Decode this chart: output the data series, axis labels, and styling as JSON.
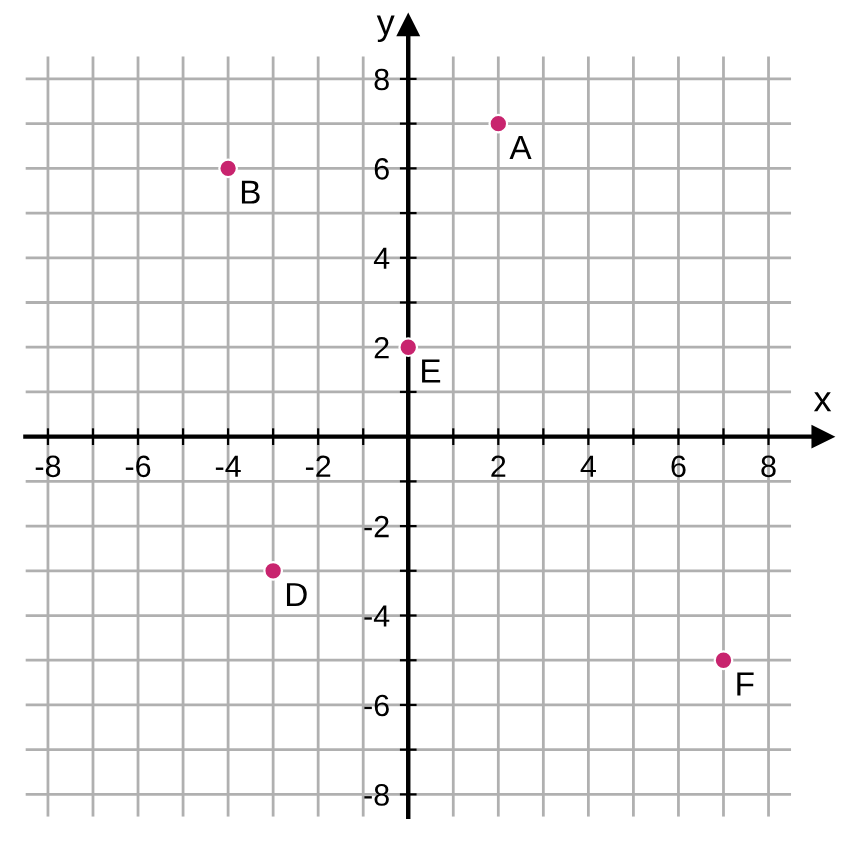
{
  "chart_data": {
    "type": "scatter",
    "xlabel": "x",
    "ylabel": "y",
    "series": [
      {
        "color": "#c8246e",
        "x": [
          2,
          -4,
          0,
          -3,
          7
        ],
        "values": [
          7,
          6,
          2,
          -3,
          -5
        ]
      }
    ],
    "marker": "circle",
    "grid": true,
    "xlim": [
      -8.5,
      9.2
    ],
    "ylim": [
      -8.5,
      9.2
    ],
    "xticks": [
      -8,
      {
        "value": -7,
        "label": null
      },
      -6,
      {
        "value": -5,
        "label": null
      },
      -4,
      {
        "value": -3,
        "label": null
      },
      -2,
      {
        "value": -1,
        "label": null
      },
      {
        "value": 0,
        "label": null
      },
      {
        "value": 1,
        "label": null
      },
      2,
      {
        "value": 3,
        "label": null
      },
      4,
      {
        "value": 5,
        "label": null
      },
      6,
      {
        "value": 7,
        "label": null
      },
      8
    ],
    "yticks": [
      -8,
      {
        "value": -7,
        "label": null
      },
      -6,
      {
        "value": -5,
        "label": null
      },
      -4,
      {
        "value": -3,
        "label": null
      },
      -2,
      {
        "value": -1,
        "label": null
      },
      {
        "value": 0,
        "label": null
      },
      {
        "value": 1,
        "label": null
      },
      2,
      {
        "value": 3,
        "label": null
      },
      4,
      {
        "value": 5,
        "label": null
      },
      6,
      {
        "value": 7,
        "label": null
      },
      8
    ],
    "annotations": [
      {
        "text": "A",
        "x": 2,
        "y": 7
      },
      {
        "text": "B",
        "x": -4,
        "y": 6
      },
      {
        "text": "E",
        "x": 0,
        "y": 2
      },
      {
        "text": "D",
        "x": -3,
        "y": -3
      },
      {
        "text": "F",
        "x": 7,
        "y": -5
      }
    ]
  }
}
